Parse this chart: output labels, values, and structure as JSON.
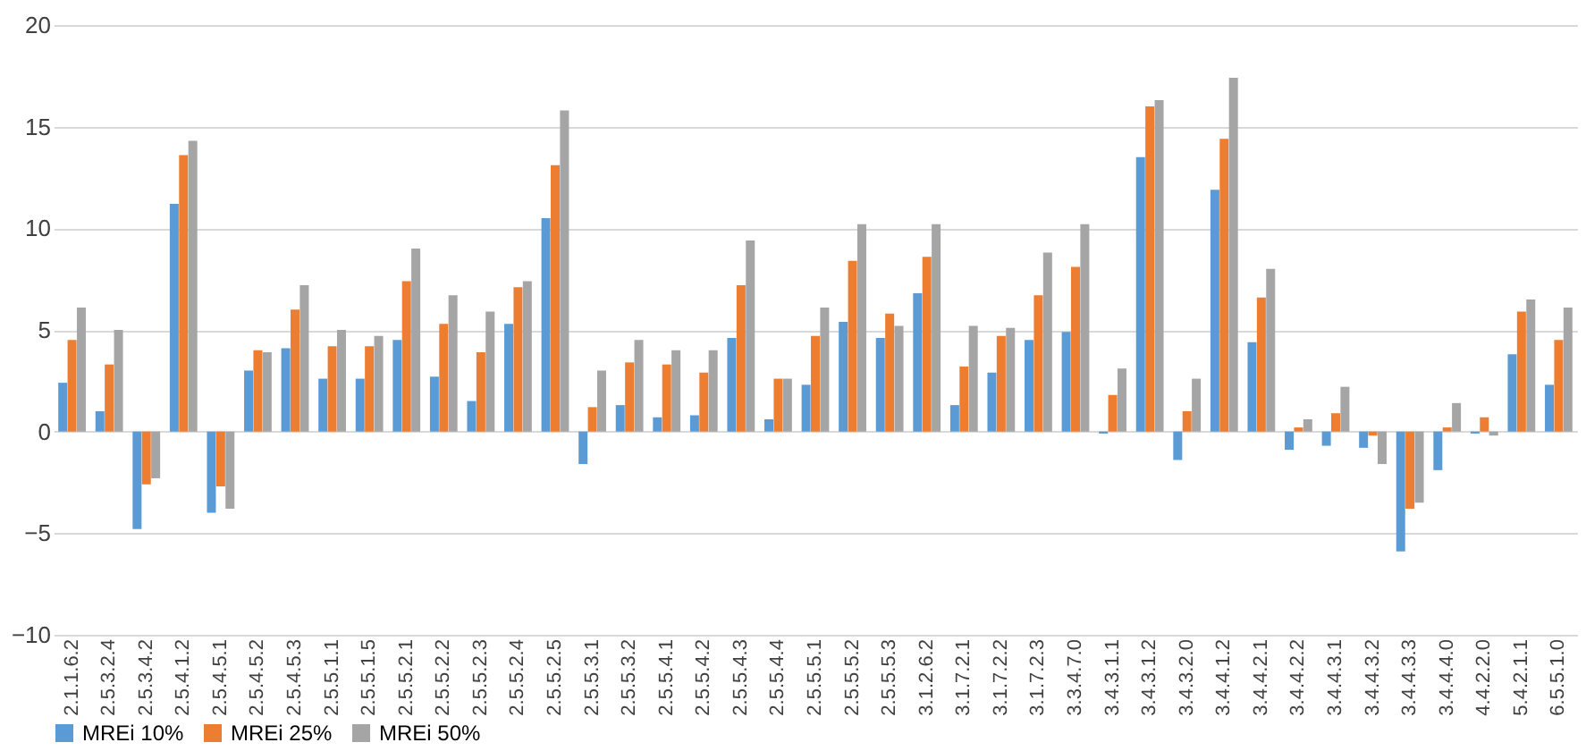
{
  "chart_data": {
    "type": "bar",
    "categories": [
      "2.1.1.6.2",
      "2.5.3.2.4",
      "2.5.3.4.2",
      "2.5.4.1.2",
      "2.5.4.5.1",
      "2.5.4.5.2",
      "2.5.4.5.3",
      "2.5.5.1.1",
      "2.5.5.1.5",
      "2.5.5.2.1",
      "2.5.5.2.2",
      "2.5.5.2.3",
      "2.5.5.2.4",
      "2.5.5.2.5",
      "2.5.5.3.1",
      "2.5.5.3.2",
      "2.5.5.4.1",
      "2.5.5.4.2",
      "2.5.5.4.3",
      "2.5.5.4.4",
      "2.5.5.5.1",
      "2.5.5.5.2",
      "2.5.5.5.3",
      "3.1.2.6.2",
      "3.1.7.2.1",
      "3.1.7.2.2",
      "3.1.7.2.3",
      "3.3.4.7.0",
      "3.4.3.1.1",
      "3.4.3.1.2",
      "3.4.3.2.0",
      "3.4.4.1.2",
      "3.4.4.2.1",
      "3.4.4.2.2",
      "3.4.4.3.1",
      "3.4.4.3.2",
      "3.4.4.3.3",
      "3.4.4.4.0",
      "4.4.2.2.0",
      "5.4.2.1.1",
      "6.5.5.1.0"
    ],
    "series": [
      {
        "name": "MREi 10%",
        "color": "#5b9bd5",
        "values": [
          2.4,
          1.0,
          -4.8,
          11.2,
          -4.0,
          3.0,
          4.1,
          2.6,
          2.6,
          4.5,
          2.7,
          1.5,
          5.3,
          10.5,
          -1.6,
          1.3,
          0.7,
          0.8,
          4.6,
          0.6,
          2.3,
          5.4,
          4.6,
          6.8,
          1.3,
          2.9,
          4.5,
          4.9,
          -0.1,
          13.5,
          -1.4,
          11.9,
          4.4,
          -0.9,
          -0.7,
          -0.8,
          -5.9,
          -1.9,
          -0.1,
          3.8,
          2.3
        ]
      },
      {
        "name": "MREi 25%",
        "color": "#ed7d31",
        "values": [
          4.5,
          3.3,
          -2.6,
          13.6,
          -2.7,
          4.0,
          6.0,
          4.2,
          4.2,
          7.4,
          5.3,
          3.9,
          7.1,
          13.1,
          1.2,
          3.4,
          3.3,
          2.9,
          7.2,
          2.6,
          4.7,
          8.4,
          5.8,
          8.6,
          3.2,
          4.7,
          6.7,
          8.1,
          1.8,
          16.0,
          1.0,
          14.4,
          6.6,
          0.2,
          0.9,
          -0.2,
          -3.8,
          0.2,
          0.7,
          5.9,
          4.5
        ]
      },
      {
        "name": "MREi 50%",
        "color": "#a5a5a5",
        "values": [
          6.1,
          5.0,
          -2.3,
          14.3,
          -3.8,
          3.9,
          7.2,
          5.0,
          4.7,
          9.0,
          6.7,
          5.9,
          7.4,
          15.8,
          3.0,
          4.5,
          4.0,
          4.0,
          9.4,
          2.6,
          6.1,
          10.2,
          5.2,
          10.2,
          5.2,
          5.1,
          8.8,
          10.2,
          3.1,
          16.3,
          2.6,
          17.4,
          8.0,
          0.6,
          2.2,
          -1.6,
          -3.5,
          1.4,
          -0.2,
          6.5,
          6.1
        ]
      }
    ],
    "ylim": [
      -10,
      20
    ],
    "yticks": [
      -10,
      -5,
      0,
      5,
      10,
      15,
      20
    ],
    "grid": "y",
    "legend": "bottom"
  }
}
